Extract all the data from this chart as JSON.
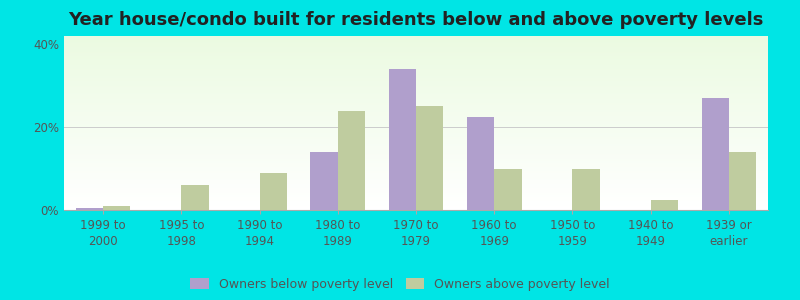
{
  "title": "Year house/condo built for residents below and above poverty levels",
  "categories": [
    "1999 to\n2000",
    "1995 to\n1998",
    "1990 to\n1994",
    "1980 to\n1989",
    "1970 to\n1979",
    "1960 to\n1969",
    "1950 to\n1959",
    "1940 to\n1949",
    "1939 or\nearlier"
  ],
  "below_poverty": [
    0.5,
    0.0,
    0.0,
    14.0,
    34.0,
    22.5,
    0.0,
    0.0,
    27.0
  ],
  "above_poverty": [
    1.0,
    6.0,
    9.0,
    24.0,
    25.0,
    10.0,
    10.0,
    2.5,
    14.0
  ],
  "below_color": "#b09fcc",
  "above_color": "#bfcc9f",
  "ylim": [
    0,
    42
  ],
  "yticks": [
    0,
    20,
    40
  ],
  "ytick_labels": [
    "0%",
    "20%",
    "40%"
  ],
  "outer_color": "#00e5e5",
  "bar_width": 0.35,
  "legend_below_label": "Owners below poverty level",
  "legend_above_label": "Owners above poverty level",
  "title_fontsize": 13,
  "tick_fontsize": 8.5,
  "legend_fontsize": 9
}
